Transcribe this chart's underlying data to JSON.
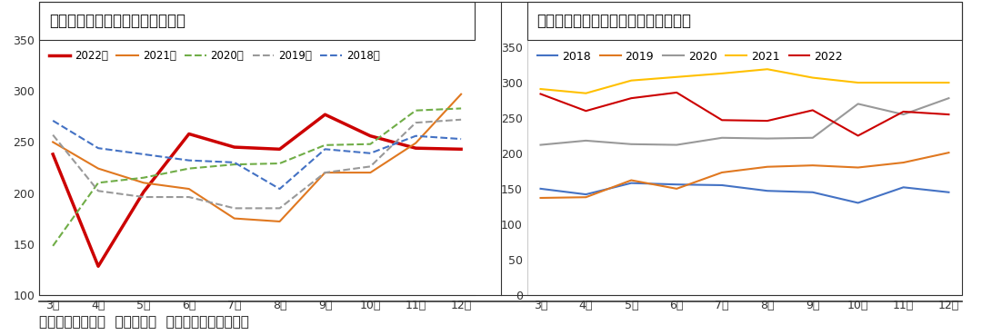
{
  "months": [
    "3月",
    "4月",
    "5月",
    "6月",
    "7月",
    "8月",
    "9月",
    "10月",
    "11月",
    "12月"
  ],
  "chart1_title": "图：中国汽车产量（单位：万辆）",
  "chart1": {
    "2022年": {
      "color": "#cc0000",
      "linestyle": "solid",
      "linewidth": 2.5,
      "values": [
        238,
        128,
        201,
        258,
        245,
        243,
        277,
        256,
        244,
        243
      ]
    },
    "2021年": {
      "color": "#e07820",
      "linestyle": "solid",
      "linewidth": 1.5,
      "values": [
        250,
        224,
        210,
        204,
        175,
        172,
        220,
        220,
        249,
        297
      ]
    },
    "2020年": {
      "color": "#70ad47",
      "linestyle": "dashed",
      "linewidth": 1.5,
      "values": [
        148,
        210,
        215,
        224,
        228,
        229,
        247,
        248,
        281,
        283
      ]
    },
    "2019年": {
      "color": "#999999",
      "linestyle": "dashed",
      "linewidth": 1.5,
      "values": [
        257,
        202,
        196,
        196,
        185,
        185,
        220,
        226,
        269,
        272
      ]
    },
    "2018年": {
      "color": "#4472c4",
      "linestyle": "dashed",
      "linewidth": 1.5,
      "values": [
        271,
        244,
        238,
        232,
        230,
        204,
        243,
        239,
        256,
        253
      ]
    }
  },
  "chart1_ylim": [
    100,
    350
  ],
  "chart1_yticks": [
    100,
    150,
    200,
    250,
    300,
    350
  ],
  "chart2_title": "图：中国集成电路产量（单位：万块）",
  "chart2": {
    "2018": {
      "color": "#4472c4",
      "linestyle": "solid",
      "linewidth": 1.5,
      "values": [
        150,
        142,
        158,
        156,
        155,
        147,
        145,
        130,
        152,
        145
      ]
    },
    "2019": {
      "color": "#e07820",
      "linestyle": "solid",
      "linewidth": 1.5,
      "values": [
        137,
        138,
        162,
        150,
        173,
        181,
        183,
        180,
        187,
        201
      ]
    },
    "2020": {
      "color": "#999999",
      "linestyle": "solid",
      "linewidth": 1.5,
      "values": [
        212,
        218,
        213,
        212,
        222,
        221,
        222,
        270,
        255,
        278
      ]
    },
    "2021": {
      "color": "#ffc000",
      "linestyle": "solid",
      "linewidth": 1.5,
      "values": [
        291,
        285,
        303,
        308,
        313,
        319,
        307,
        300,
        300,
        300
      ]
    },
    "2022": {
      "color": "#cc0000",
      "linestyle": "solid",
      "linewidth": 1.5,
      "values": [
        284,
        260,
        278,
        286,
        247,
        246,
        261,
        225,
        259,
        255
      ]
    }
  },
  "chart2_ylim": [
    0,
    360
  ],
  "chart2_yticks": [
    0,
    50,
    100,
    150,
    200,
    250,
    300,
    350
  ],
  "footer": "数据来源：中汽协  国家统计局  广发期货发展研究中心",
  "bg_color": "#ffffff",
  "title_bg_color": "#ffffff",
  "border_color": "#333333"
}
